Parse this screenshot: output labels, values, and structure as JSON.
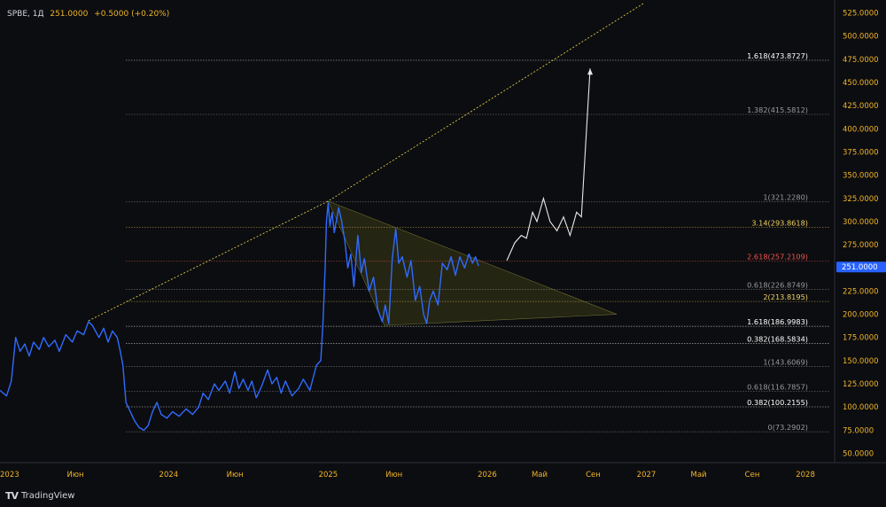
{
  "legend": {
    "symbol": "SPBE, 1Д",
    "value": "251.0000",
    "change": "+0.5000 (+0.20%)"
  },
  "branding": {
    "logo": "TV",
    "name": "TradingView"
  },
  "colors": {
    "background": "#0c0d10",
    "price_line": "#2f6bff",
    "axis_text": "#f0b429",
    "trend_line": "#d9c84a",
    "triangle_fill": "#3a3a16",
    "projection": "#e8e8e8",
    "fib_line": "#9a9a9a",
    "last_price_badge": "#2962ff"
  },
  "chart_data": {
    "type": "line",
    "symbol": "SPBE",
    "interval": "1Д",
    "ylim": [
      40,
      535
    ],
    "y_ticks": [
      "525.0000",
      "500.0000",
      "475.0000",
      "450.0000",
      "425.0000",
      "400.0000",
      "375.0000",
      "350.0000",
      "325.0000",
      "300.0000",
      "275.0000",
      "250.0000",
      "225.0000",
      "200.0000",
      "175.0000",
      "150.0000",
      "125.0000",
      "100.0000",
      "75.0000",
      "50.0000"
    ],
    "x_ticks": [
      {
        "label": "2023",
        "x": "2023-01-01"
      },
      {
        "label": "Июн",
        "x": "2023-06-01"
      },
      {
        "label": "2024",
        "x": "2024-01-01"
      },
      {
        "label": "Июн",
        "x": "2024-06-01"
      },
      {
        "label": "2025",
        "x": "2025-01-01"
      },
      {
        "label": "Июн",
        "x": "2025-06-01"
      },
      {
        "label": "2026",
        "x": "2026-01-01"
      },
      {
        "label": "Май",
        "x": "2026-05-01"
      },
      {
        "label": "Сен",
        "x": "2026-09-01"
      },
      {
        "label": "2027",
        "x": "2027-01-01"
      },
      {
        "label": "Май",
        "x": "2027-05-01"
      },
      {
        "label": "Сен",
        "x": "2027-09-01"
      },
      {
        "label": "2028",
        "x": "2028-01-01"
      }
    ],
    "last_price": "251.0000",
    "series": [
      {
        "values": [
          [
            "2022-12-10",
            118
          ],
          [
            "2022-12-25",
            112
          ],
          [
            "2023-01-05",
            128
          ],
          [
            "2023-01-15",
            175
          ],
          [
            "2023-01-25",
            160
          ],
          [
            "2023-02-05",
            168
          ],
          [
            "2023-02-15",
            155
          ],
          [
            "2023-02-25",
            170
          ],
          [
            "2023-03-10",
            162
          ],
          [
            "2023-03-20",
            175
          ],
          [
            "2023-04-01",
            165
          ],
          [
            "2023-04-15",
            172
          ],
          [
            "2023-04-25",
            160
          ],
          [
            "2023-05-10",
            178
          ],
          [
            "2023-05-25",
            170
          ],
          [
            "2023-06-05",
            182
          ],
          [
            "2023-06-20",
            178
          ],
          [
            "2023-07-01",
            192
          ],
          [
            "2023-07-10",
            188
          ],
          [
            "2023-07-25",
            175
          ],
          [
            "2023-08-05",
            185
          ],
          [
            "2023-08-15",
            170
          ],
          [
            "2023-08-25",
            182
          ],
          [
            "2023-09-05",
            175
          ],
          [
            "2023-09-12",
            160
          ],
          [
            "2023-09-18",
            145
          ],
          [
            "2023-09-25",
            105
          ],
          [
            "2023-10-05",
            95
          ],
          [
            "2023-10-15",
            85
          ],
          [
            "2023-10-25",
            78
          ],
          [
            "2023-11-05",
            75
          ],
          [
            "2023-11-15",
            80
          ],
          [
            "2023-11-25",
            95
          ],
          [
            "2023-12-05",
            105
          ],
          [
            "2023-12-15",
            92
          ],
          [
            "2023-12-28",
            88
          ],
          [
            "2024-01-10",
            95
          ],
          [
            "2024-01-25",
            90
          ],
          [
            "2024-02-10",
            98
          ],
          [
            "2024-02-25",
            92
          ],
          [
            "2024-03-10",
            100
          ],
          [
            "2024-03-20",
            115
          ],
          [
            "2024-04-01",
            108
          ],
          [
            "2024-04-15",
            125
          ],
          [
            "2024-04-25",
            118
          ],
          [
            "2024-05-10",
            128
          ],
          [
            "2024-05-20",
            115
          ],
          [
            "2024-06-01",
            138
          ],
          [
            "2024-06-10",
            120
          ],
          [
            "2024-06-20",
            130
          ],
          [
            "2024-07-01",
            118
          ],
          [
            "2024-07-10",
            128
          ],
          [
            "2024-07-20",
            110
          ],
          [
            "2024-08-01",
            122
          ],
          [
            "2024-08-15",
            140
          ],
          [
            "2024-08-25",
            125
          ],
          [
            "2024-09-05",
            132
          ],
          [
            "2024-09-15",
            115
          ],
          [
            "2024-09-25",
            128
          ],
          [
            "2024-10-10",
            112
          ],
          [
            "2024-10-25",
            120
          ],
          [
            "2024-11-05",
            130
          ],
          [
            "2024-11-20",
            118
          ],
          [
            "2024-12-05",
            145
          ],
          [
            "2024-12-15",
            150
          ],
          [
            "2024-12-20",
            190
          ],
          [
            "2024-12-25",
            250
          ],
          [
            "2024-12-28",
            300
          ],
          [
            "2025-01-01",
            320
          ],
          [
            "2025-01-05",
            295
          ],
          [
            "2025-01-10",
            310
          ],
          [
            "2025-01-15",
            288
          ],
          [
            "2025-01-25",
            315
          ],
          [
            "2025-02-01",
            300
          ],
          [
            "2025-02-08",
            280
          ],
          [
            "2025-02-15",
            250
          ],
          [
            "2025-02-22",
            265
          ],
          [
            "2025-03-01",
            230
          ],
          [
            "2025-03-10",
            285
          ],
          [
            "2025-03-18",
            245
          ],
          [
            "2025-03-25",
            260
          ],
          [
            "2025-04-05",
            225
          ],
          [
            "2025-04-15",
            240
          ],
          [
            "2025-04-25",
            205
          ],
          [
            "2025-05-05",
            192
          ],
          [
            "2025-05-12",
            210
          ],
          [
            "2025-05-20",
            190
          ],
          [
            "2025-05-28",
            260
          ],
          [
            "2025-06-05",
            292
          ],
          [
            "2025-06-12",
            255
          ],
          [
            "2025-06-20",
            262
          ],
          [
            "2025-07-01",
            240
          ],
          [
            "2025-07-10",
            258
          ],
          [
            "2025-07-20",
            215
          ],
          [
            "2025-07-30",
            230
          ],
          [
            "2025-08-08",
            200
          ],
          [
            "2025-08-15",
            190
          ],
          [
            "2025-08-22",
            215
          ],
          [
            "2025-08-30",
            225
          ],
          [
            "2025-09-10",
            210
          ],
          [
            "2025-09-20",
            255
          ],
          [
            "2025-10-01",
            248
          ],
          [
            "2025-10-10",
            262
          ],
          [
            "2025-10-20",
            242
          ],
          [
            "2025-10-30",
            262
          ],
          [
            "2025-11-10",
            250
          ],
          [
            "2025-11-20",
            265
          ],
          [
            "2025-11-28",
            255
          ],
          [
            "2025-12-05",
            262
          ],
          [
            "2025-12-12",
            252
          ]
        ]
      }
    ],
    "projection": [
      [
        "2026-02-15",
        258
      ],
      [
        "2026-03-05",
        277
      ],
      [
        "2026-03-20",
        285
      ],
      [
        "2026-04-01",
        282
      ],
      [
        "2026-04-15",
        310
      ],
      [
        "2026-04-25",
        300
      ],
      [
        "2026-05-10",
        325
      ],
      [
        "2026-05-25",
        300
      ],
      [
        "2026-06-10",
        290
      ],
      [
        "2026-06-25",
        305
      ],
      [
        "2026-07-10",
        285
      ],
      [
        "2026-07-25",
        310
      ],
      [
        "2026-08-05",
        305
      ],
      [
        "2026-08-25",
        465
      ]
    ],
    "trend_line": [
      [
        "2023-07-01",
        193
      ],
      [
        "2025-01-01",
        322
      ],
      [
        "2026-12-25",
        535
      ]
    ],
    "triangle": [
      [
        "2025-01-01",
        322
      ],
      [
        "2025-05-10",
        188
      ],
      [
        "2026-10-25",
        200
      ]
    ],
    "fib_levels": [
      {
        "label": "1.618(473.8727)",
        "value": 473.8727,
        "color": "#ffffff"
      },
      {
        "label": "1.382(415.5812)",
        "value": 415.5812,
        "color": "#9a9a9a"
      },
      {
        "label": "1(321.2280)",
        "value": 321.228,
        "color": "#9a9a9a"
      },
      {
        "label": "3.14(293.8618)",
        "value": 293.8618,
        "color": "#f0d060"
      },
      {
        "label": "2.618(257.2109)",
        "value": 257.2109,
        "color": "#ef5350"
      },
      {
        "label": "0.618(226.8749)",
        "value": 226.8749,
        "color": "#9a9a9a"
      },
      {
        "label": "2(213.8195)",
        "value": 213.8195,
        "color": "#f0d060"
      },
      {
        "label": "1.618(186.9983)",
        "value": 186.9983,
        "color": "#ffffff"
      },
      {
        "label": "0.382(168.5834)",
        "value": 168.5834,
        "color": "#ffffff"
      },
      {
        "label": "1(143.6069)",
        "value": 143.6069,
        "color": "#9a9a9a"
      },
      {
        "label": "0.618(116.7857)",
        "value": 116.7857,
        "color": "#9a9a9a"
      },
      {
        "label": "0.382(100.2155)",
        "value": 100.2155,
        "color": "#ffffff"
      },
      {
        "label": "0(73.2902)",
        "value": 73.2902,
        "color": "#9a9a9a"
      }
    ]
  }
}
